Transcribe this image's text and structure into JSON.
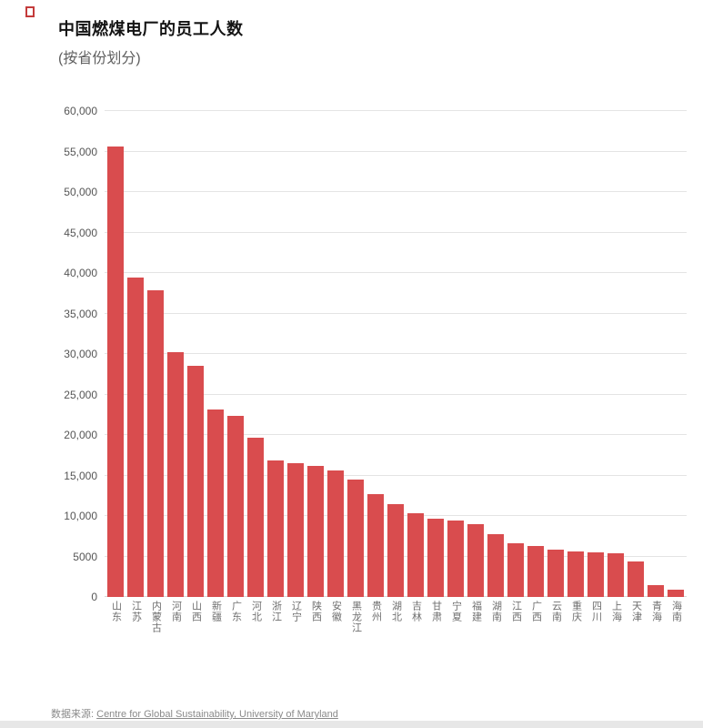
{
  "page": {
    "title": "中国燃煤电厂的员工人数",
    "subtitle": "(按省份划分)"
  },
  "footer": {
    "source_label": "数据来源:",
    "source_link_text": "Centre for Global Sustainability, University of Maryland"
  },
  "chart_data": {
    "type": "bar",
    "title": "中国燃煤电厂的员工人数",
    "subtitle": "(按省份划分)",
    "categories": [
      "山东",
      "江苏",
      "内蒙古",
      "河南",
      "山西",
      "新疆",
      "广东",
      "河北",
      "浙江",
      "辽宁",
      "陕西",
      "安徽",
      "黑龙江",
      "贵州",
      "湖北",
      "吉林",
      "甘肃",
      "宁夏",
      "福建",
      "湖南",
      "江西",
      "广西",
      "云南",
      "重庆",
      "四川",
      "上海",
      "天津",
      "青海",
      "海南"
    ],
    "values": [
      55600,
      39400,
      37900,
      30200,
      28500,
      23100,
      22400,
      19700,
      16900,
      16500,
      16200,
      15600,
      14500,
      12700,
      11500,
      10300,
      9700,
      9400,
      9000,
      7800,
      6600,
      6300,
      5800,
      5600,
      5500,
      5400,
      4400,
      1500,
      900
    ],
    "ylim": [
      0,
      60000
    ],
    "ytick_values": [
      0,
      5000,
      10000,
      15000,
      20000,
      25000,
      30000,
      35000,
      40000,
      45000,
      50000,
      55000,
      60000
    ],
    "ytick_labels": [
      "0",
      "5000",
      "10,000",
      "15,000",
      "20,000",
      "25,000",
      "30,000",
      "35,000",
      "40,000",
      "45,000",
      "50,000",
      "55,000",
      "60,000"
    ],
    "grid": true,
    "legend": "none",
    "bar_color": "#d94c4e",
    "xlabel": "",
    "ylabel": "",
    "source": "数据来源: Centre for Global Sustainability, University of Maryland"
  }
}
